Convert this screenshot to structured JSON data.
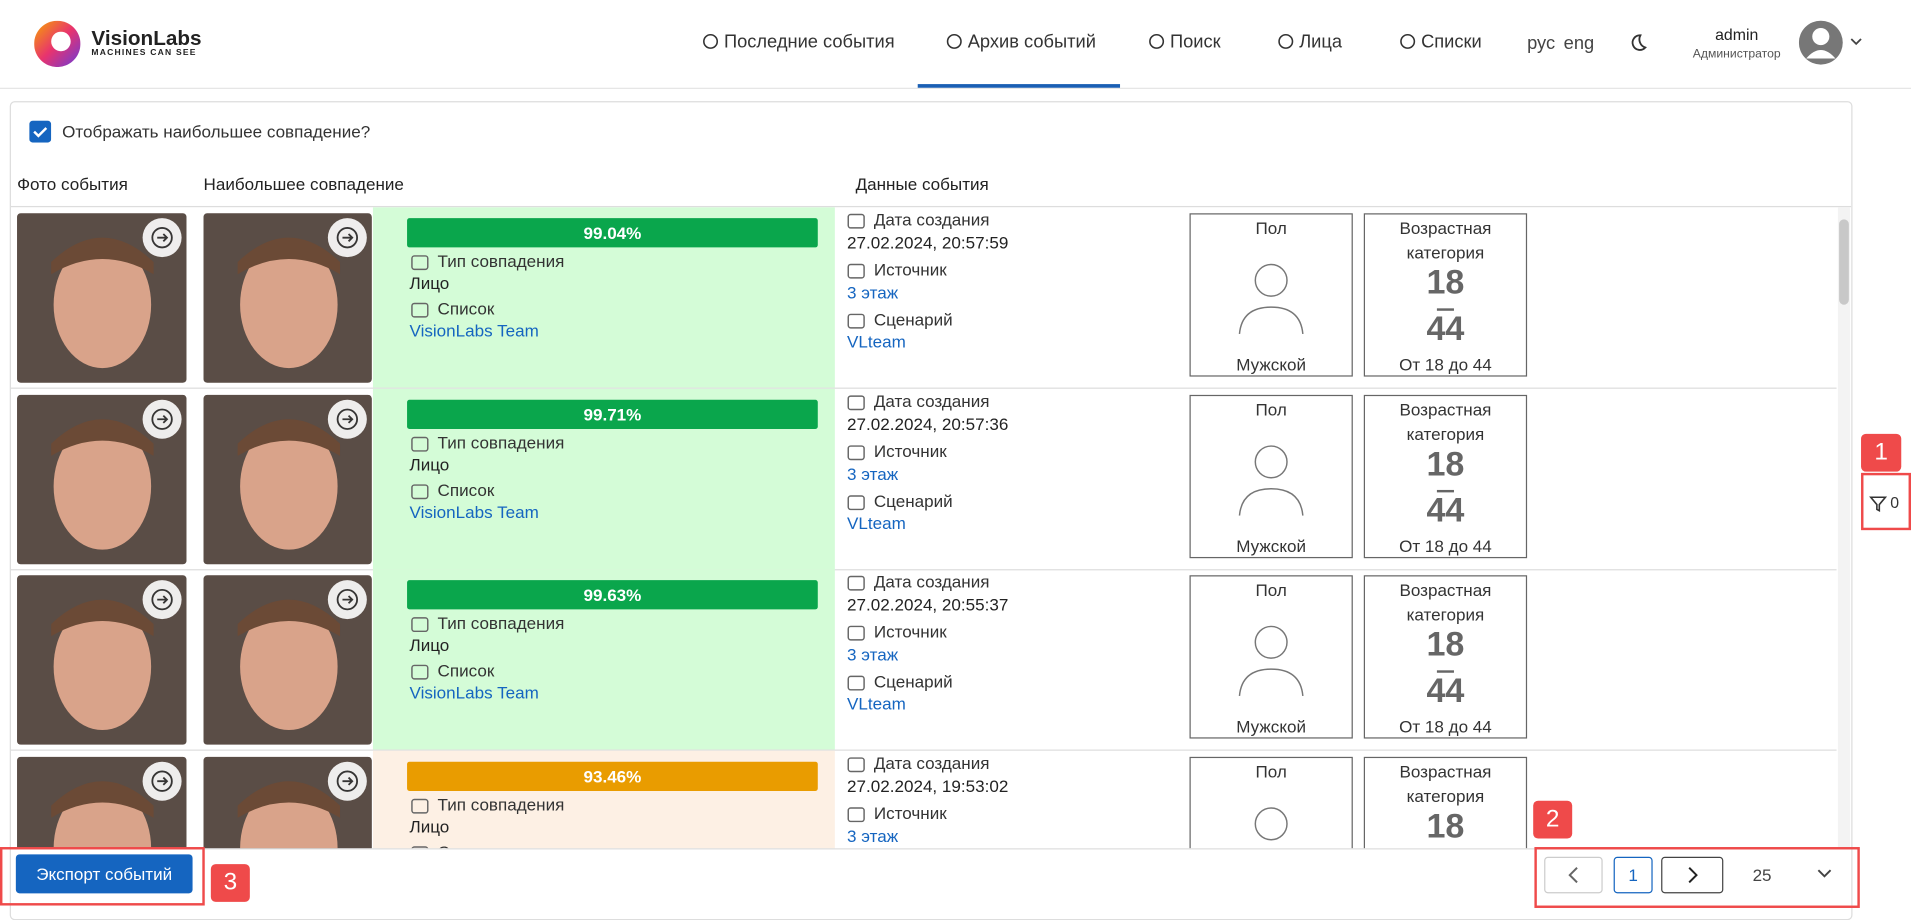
{
  "header": {
    "logo_title": "VisionLabs",
    "logo_subtitle": "MACHINES CAN SEE",
    "nav": [
      "Последние события",
      "Архив событий",
      "Поиск",
      "Лица",
      "Списки"
    ],
    "languages": [
      "рус",
      "eng"
    ],
    "user_name": "admin",
    "user_role": "Администратор"
  },
  "checkbox_label": "Отображать наибольшее совпадение?",
  "columns": [
    "Фото события",
    "Наибольшее совпадение",
    "Данные события"
  ],
  "rows": [
    {
      "score": "99.04%",
      "match_type_label": "Тип совпадения",
      "match_type": "Лицо",
      "list_label": "Список",
      "list": "VisionLabs Team",
      "date_label": "Дата создания",
      "date": "27.02.2024, 20:57:59",
      "source_label": "Источник",
      "source": "3 этаж",
      "scenario_label": "Сценарий",
      "scenario": "VLteam",
      "gender_label": "Пол",
      "gender": "Мужской",
      "age_label": [
        "Возрастная",
        "категория"
      ],
      "age_min": "18",
      "age_max": "44",
      "age_text": "От 18 до 44"
    },
    {
      "score": "99.71%",
      "match_type_label": "Тип совпадения",
      "match_type": "Лицо",
      "list_label": "Список",
      "list": "VisionLabs Team",
      "date_label": "Дата создания",
      "date": "27.02.2024, 20:57:36",
      "source_label": "Источник",
      "source": "3 этаж",
      "scenario_label": "Сценарий",
      "scenario": "VLteam",
      "gender_label": "Пол",
      "gender": "Мужской",
      "age_label": [
        "Возрастная",
        "категория"
      ],
      "age_min": "18",
      "age_max": "44",
      "age_text": "От 18 до 44"
    },
    {
      "score": "99.63%",
      "match_type_label": "Тип совпадения",
      "match_type": "Лицо",
      "list_label": "Список",
      "list": "VisionLabs Team",
      "date_label": "Дата создания",
      "date": "27.02.2024, 20:55:37",
      "source_label": "Источник",
      "source": "3 этаж",
      "scenario_label": "Сценарий",
      "scenario": "VLteam",
      "gender_label": "Пол",
      "gender": "Мужской",
      "age_label": [
        "Возрастная",
        "категория"
      ],
      "age_min": "18",
      "age_max": "44",
      "age_text": "От 18 до 44"
    },
    {
      "score": "93.46%",
      "match_type_label": "Тип совпадения",
      "match_type": "Лицо",
      "list_label": "Список",
      "date_label": "Дата создания",
      "date": "27.02.2024, 19:53:02",
      "source_label": "Источник",
      "source": "3 этаж",
      "gender_label": "Пол",
      "age_label": [
        "Возрастная",
        "категория"
      ],
      "age_min": "18"
    }
  ],
  "export_button": "Экспорт событий",
  "pagination": {
    "page": "1",
    "page_size": "25"
  },
  "filter_count": "0",
  "annotations": [
    "1",
    "2",
    "3"
  ]
}
